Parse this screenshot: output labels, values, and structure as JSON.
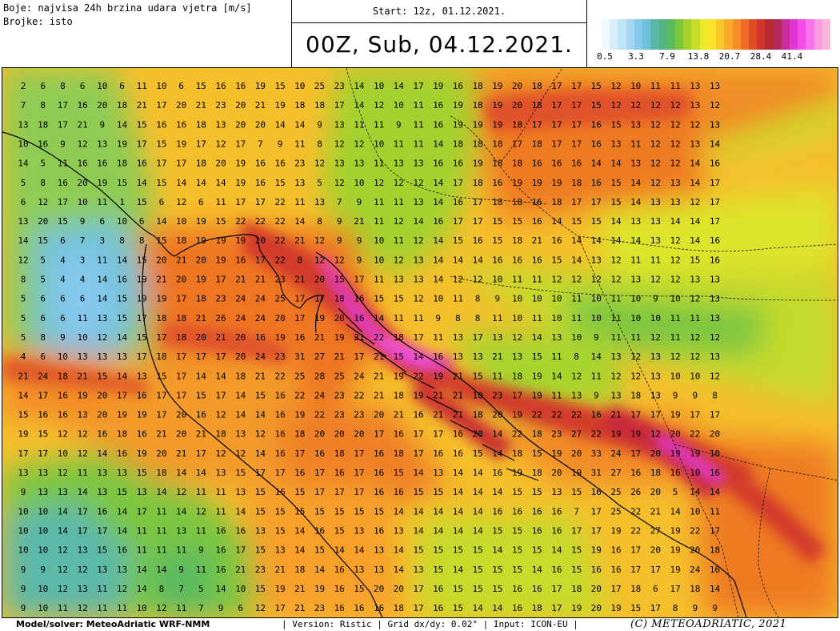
{
  "header": {
    "colors_label": "Boje: najvisa 24h brzina udara vjetra [m/s]",
    "numbers_label": "Brojke: isto",
    "start": "Start: 12z, 01.12.2021.",
    "valid": "00Z, Sub, 04.12.2021."
  },
  "legend": {
    "colors": [
      "#f2f8fd",
      "#d9eefa",
      "#bfe3f7",
      "#a2d6f3",
      "#86c9ee",
      "#6fc1d8",
      "#5bb8a8",
      "#4fb585",
      "#5cbb5e",
      "#7cc63f",
      "#a2d22e",
      "#c8dc2a",
      "#ecea28",
      "#fbe12b",
      "#fcc72c",
      "#f9ab2c",
      "#f68d27",
      "#ef6c22",
      "#e24c22",
      "#d0342a",
      "#b92b31",
      "#b22a5a",
      "#c82da0",
      "#e036d2",
      "#f44ceb",
      "#fb72ea",
      "#fb9be4",
      "#f7b6dc"
    ],
    "ticks": [
      "0.5",
      "3.3",
      "7.9",
      "13.8",
      "20.7",
      "28.4",
      "41.4"
    ]
  },
  "grid_rows": [
    "2 6 8 6 10 6 11 10 6 15 16 16 19 15 10 25 23 14 10 14 17 19 16 18 19 20 18 17 17 15 12 10 11 11 13 13",
    "7 8 17 16 20 18 21 17 20 21 23 20 21 19 18 18 17 14 12 10 11 16 19 18 19 20 18 17 17 15 12 12 12 12 13 12",
    "13 18 17 21 9 14 15 16 16 18 13 20 20 14 14 9 13 11 11 9 11 16 19 19 19 18 17 17 17 16 15 13 12 12 12 13",
    "10 16 9 12 13 19 17 15 19 17 12 17 7 9 11 8 12 12 10 11 11 14 18 18 18 17 18 17 17 16 13 11 12 12 13 14",
    "14 5 11 16 16 18 16 17 17 18 20 19 16 16 23 12 13 13 11 13 13 16 16 19 18 18 16 16 16 14 14 13 12 12 14 16",
    "5 8 16 20 19 15 14 15 14 14 14 19 16 15 13 5 12 10 12 12 12 14 17 18 16 19 19 19 18 16 15 14 12 13 14 17",
    "6 12 17 10 11 1 15 6 12 6 11 17 17 22 11 13 7 9 11 11 13 14 16 17 18 18 16 18 17 17 15 14 13 13 12 17",
    "13 20 15 9 6 10 6 14 10 19 15 22 22 22 14 8 9 21 11 12 14 16 17 17 15 15 16 14 15 15 14 13 13 14 14 17",
    "14 15 6 7 3 8 8 15 18 19 19 19 20 22 21 12 9 9 10 11 12 14 15 16 15 18 21 16 14 14 14 14 13 12 14 16",
    "12 5 4 3 11 14 15 20 21 20 19 16 17 22 8 12 12 9 10 12 13 14 14 14 16 16 16 15 14 13 12 11 11 12 15 16",
    "8 5 4 4 14 16 19 21 20 19 17 21 21 23 21 20 15 17 11 13 13 14 12 12 10 11 11 12 12 12 12 13 12 12 13 13",
    "5 6 6 6 14 15 19 19 17 18 23 24 24 25 17 17 18 16 15 15 12 10 11 8 9 10 10 10 11 10 11 10 9 10 12 13",
    "5 6 6 11 13 15 17 18 18 21 26 24 24 20 17 19 20 16 14 11 11 9 8 8 11 10 11 10 11 10 11 10 10 11 11 13",
    "5 8 9 10 12 14 15 17 18 20 21 20 16 19 16 21 19 21 22 18 17 11 13 17 13 12 14 13 10 9 11 11 12 11 12 12",
    "4 6 10 13 13 13 17 18 17 17 17 20 24 23 31 27 21 17 21 15 14 16 13 13 21 13 15 11 8 14 13 12 13 12 12 13",
    "21 24 18 21 15 14 13 15 17 14 14 18 21 22 25 28 25 24 21 19 22 19 21 15 11 18 19 14 12 11 12 12 13 10 10 12",
    "14 17 16 19 20 17 16 17 17 15 17 14 15 16 22 24 23 22 21 18 19 21 21 10 23 17 19 11 13 9 13 18 13 9 9 8",
    "15 16 16 13 20 19 19 17 20 16 12 14 14 16 19 22 23 23 20 21 16 21 21 18 20 19 22 22 22 16 21 17 17 19 17 17",
    "19 15 12 12 16 18 16 21 20 21 18 13 12 16 18 20 20 20 17 16 17 17 16 20 14 22 18 23 27 22 19 19 12 20 22 20",
    "17 17 10 12 14 16 19 20 21 17 12 12 14 16 17 16 18 17 16 18 17 16 16 15 14 18 15 19 20 33 24 17 20 19 19 10",
    "13 13 12 11 13 13 15 18 14 14 13 15 17 17 16 17 16 17 16 15 14 13 14 14 16 19 18 20 19 31 27 16 18 16 10 16",
    "9 13 13 14 13 15 13 14 12 11 11 13 15 16 15 17 17 17 16 16 15 15 14 14 14 15 15 13 15 16 25 26 20 5 14 14",
    "10 10 14 17 16 14 17 11 14 12 11 14 15 15 15 15 15 15 15 14 14 14 14 14 16 16 16 16 7 17 25 22 21 14 10 11",
    "10 10 14 17 17 14 11 11 13 11 16 16 13 15 14 16 15 13 16 13 14 14 14 14 15 15 16 16 17 17 19 22 27 19 22 17",
    "10 10 12 13 15 16 11 11 11 9 16 17 15 13 14 15 14 14 13 14 15 15 15 15 14 15 15 14 15 19 16 17 20 19 20 18",
    "9 9 12 12 13 13 14 14 9 11 16 21 23 21 18 14 16 13 13 14 13 15 14 15 15 15 14 16 15 16 16 17 17 19 24 16",
    "9 10 12 13 11 12 14 8 7 5 14 10 15 19 21 19 16 15 20 20 17 16 15 15 15 16 16 17 18 20 17 18 6 17 18 14",
    "9 10 11 12 11 11 10 12 11 7 9 6 12 17 21 23 16 16 16 18 17 16 15 14 14 16 18 17 19 20 19 15 17 8 9 9"
  ],
  "footer": {
    "model": "Model/solver: MeteoAdriatic WRF-NMM",
    "info": "| Version: Ristic | Grid dx/dy: 0.02° | Input: ICON-EU |",
    "copyright": "(C) METEOADRIATIC, 2021"
  }
}
